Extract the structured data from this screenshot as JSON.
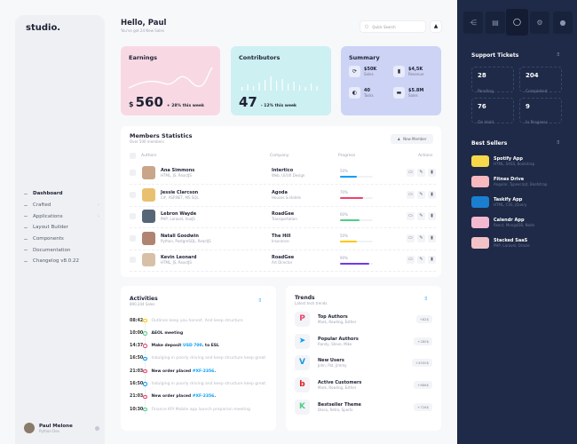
{
  "sidebar": {
    "logo": "studio.",
    "items": [
      {
        "label": "Dashboard",
        "active": true
      },
      {
        "label": "Crafted",
        "chevron": true
      },
      {
        "label": "Applications",
        "chevron": true
      },
      {
        "label": "Layout Builder"
      },
      {
        "label": "Components"
      },
      {
        "label": "Documentation"
      },
      {
        "label": "Changelog v8.0.22"
      }
    ],
    "user": {
      "name": "Paul Melone",
      "role": "Python Dev"
    }
  },
  "header": {
    "greeting": "Hello, Paul",
    "subtitle": "You've got 24 New Sales",
    "search_placeholder": "Quick Search"
  },
  "earnings": {
    "title": "Earnings",
    "currency": "$",
    "value": "560",
    "change": "+ 28% this week"
  },
  "contributors": {
    "title": "Contributors",
    "value": "47",
    "change": "- 12% this week"
  },
  "summary": {
    "title": "Summary",
    "items": [
      {
        "value": "$50K",
        "label": "Sales"
      },
      {
        "value": "$4,5K",
        "label": "Revenue"
      },
      {
        "value": "40",
        "label": "Tasks"
      },
      {
        "value": "$5.8M",
        "label": "Sales"
      }
    ]
  },
  "members": {
    "title": "Members Statistics",
    "subtitle": "Over 500 members",
    "new_button": "New Member",
    "columns": [
      "Authors",
      "Company",
      "Progress",
      "Actions"
    ],
    "rows": [
      {
        "name": "Ana Simmons",
        "skills": "HTML, JS, ReactJS",
        "company": "Intertico",
        "dept": "Web, UI/UX Design",
        "progress": 50,
        "color": "#009ef7",
        "face": "#c9a58a"
      },
      {
        "name": "Jessie Clarcson",
        "skills": "C#, ASP.NET, MS SQL",
        "company": "Agoda",
        "dept": "Houses & Hotels",
        "progress": 70,
        "color": "#f1416c",
        "face": "#e8c070"
      },
      {
        "name": "Lebron Wayde",
        "skills": "PHP, Laravel, VueJS",
        "company": "RoadGee",
        "dept": "Transportation",
        "progress": 60,
        "color": "#50cd89",
        "face": "#556677"
      },
      {
        "name": "Natali Goodwin",
        "skills": "Python, PostgreSQL, ReactJS",
        "company": "The Hill",
        "dept": "Insurance",
        "progress": 50,
        "color": "#ffc700",
        "face": "#b08470"
      },
      {
        "name": "Kevin Leonard",
        "skills": "HTML, JS, ReactJS",
        "company": "RoadGee",
        "dept": "Art Director",
        "progress": 90,
        "color": "#7239ea",
        "face": "#d8c0a8"
      }
    ]
  },
  "activities": {
    "title": "Activities",
    "subtitle": "890,344 Sales",
    "items": [
      {
        "time": "08:42",
        "color": "#ffc700",
        "text": "Outlines keep you honest. And keep structure",
        "muted": true
      },
      {
        "time": "10:00",
        "color": "#50cd89",
        "text": "AEOL meeting"
      },
      {
        "time": "14:37",
        "color": "#f1416c",
        "text": "Make deposit",
        "link": "USD 700",
        "after": ". to ESL"
      },
      {
        "time": "16:50",
        "color": "#009ef7",
        "text": "Indulging in poorly driving and keep structure keep great",
        "muted": true
      },
      {
        "time": "21:03",
        "color": "#f1416c",
        "text": "New order placed",
        "link": "#XF-2356",
        "after": "."
      },
      {
        "time": "16:50",
        "color": "#009ef7",
        "text": "Indulging in poorly driving and keep structure keep great",
        "muted": true
      },
      {
        "time": "21:03",
        "color": "#f1416c",
        "text": "New order placed",
        "link": "#XF-2356",
        "after": "."
      },
      {
        "time": "10:30",
        "color": "#50cd89",
        "text": "Finance KPI Mobile app launch preparion meeting",
        "muted": true
      }
    ]
  },
  "trends": {
    "title": "Trends",
    "subtitle": "Latest tech trends",
    "items": [
      {
        "title": "Top Authors",
        "names": "Mark, Rowling, Esther",
        "badge": "+82$",
        "icon": "P",
        "color": "#f1416c"
      },
      {
        "title": "Popular Authors",
        "names": "Randy, Steve, Mike",
        "badge": "+280$",
        "icon": "➤",
        "color": "#009ef7"
      },
      {
        "title": "New Users",
        "names": "John, Pat, Jimmy",
        "badge": "+4500$",
        "icon": "V",
        "color": "#1a9ae0"
      },
      {
        "title": "Active Customers",
        "names": "Mark, Rowling, Esther",
        "badge": "+686$",
        "icon": "b",
        "color": "#e02020"
      },
      {
        "title": "Bestseller Theme",
        "names": "Disco, Retro, Sports",
        "badge": "+726$",
        "icon": "K",
        "color": "#50cd89"
      }
    ]
  },
  "support": {
    "title": "Support Tickets",
    "tiles": [
      {
        "value": "28",
        "label": "Pending"
      },
      {
        "value": "204",
        "label": "Completed"
      },
      {
        "value": "76",
        "label": "On Hold"
      },
      {
        "value": "9",
        "label": "In Progress"
      }
    ]
  },
  "best_sellers": {
    "title": "Best Sellers",
    "items": [
      {
        "name": "Spotify App",
        "tech": "HTML, SASS, Bootstrap",
        "color": "#f6d84a"
      },
      {
        "name": "Fitnes Drive",
        "tech": "Angular, Typescript, Bootstrap",
        "color": "#f7b8bf"
      },
      {
        "name": "Taskify App",
        "tech": "HTML, CSS, jQuery",
        "color": "#1a7fd0"
      },
      {
        "name": "Calendr App",
        "tech": "React, MongoDB, Node",
        "color": "#f5b9cf"
      },
      {
        "name": "Stacked SaaS",
        "tech": "PHP, Laravel, Oracle",
        "color": "#f3c2c6"
      }
    ]
  }
}
